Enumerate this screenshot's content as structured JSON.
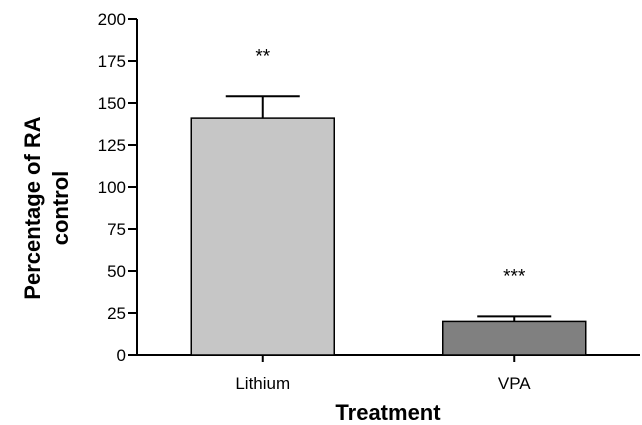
{
  "chart_data": {
    "type": "bar",
    "categories": [
      "Lithium",
      "VPA"
    ],
    "values": [
      141,
      20
    ],
    "error_upper": [
      154,
      23
    ],
    "significance": [
      "**",
      "***"
    ],
    "bar_colors": [
      "#c6c6c6",
      "#808080"
    ],
    "xlabel": "Treatment",
    "ylabel_lines": [
      "Percentage of RA",
      "control"
    ],
    "ylim": [
      0,
      200
    ],
    "yticks": [
      0,
      25,
      50,
      75,
      100,
      125,
      150,
      175,
      200
    ],
    "grid": false
  }
}
